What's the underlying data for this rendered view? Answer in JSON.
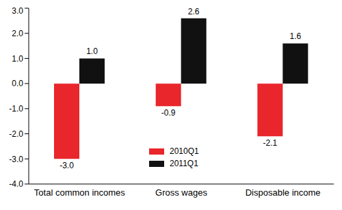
{
  "chart_data": {
    "type": "bar",
    "categories": [
      "Total common incomes",
      "Gross wages",
      "Disposable income"
    ],
    "series": [
      {
        "name": "2010Q1",
        "color": "#e8262b",
        "values": [
          -3.0,
          -0.9,
          -2.1
        ],
        "value_labels": [
          "-3.0",
          "-0.9",
          "-2.1"
        ]
      },
      {
        "name": "2011Q1",
        "color": "#111111",
        "values": [
          1.0,
          2.6,
          1.6
        ],
        "value_labels": [
          "1.0",
          "2.6",
          "1.6"
        ]
      }
    ],
    "ylim": [
      -4,
      3
    ],
    "yticks": [
      {
        "value": -4,
        "label": "-4.0"
      },
      {
        "value": -3,
        "label": "-3.0"
      },
      {
        "value": -2,
        "label": "-2.0"
      },
      {
        "value": -1,
        "label": "-1.0"
      },
      {
        "value": 0,
        "label": "0.0"
      },
      {
        "value": 1,
        "label": "1.0"
      },
      {
        "value": 2,
        "label": "2.0"
      },
      {
        "value": 3,
        "label": "3.0"
      }
    ],
    "grid": false,
    "data_labels": true,
    "legend": "bottom"
  }
}
